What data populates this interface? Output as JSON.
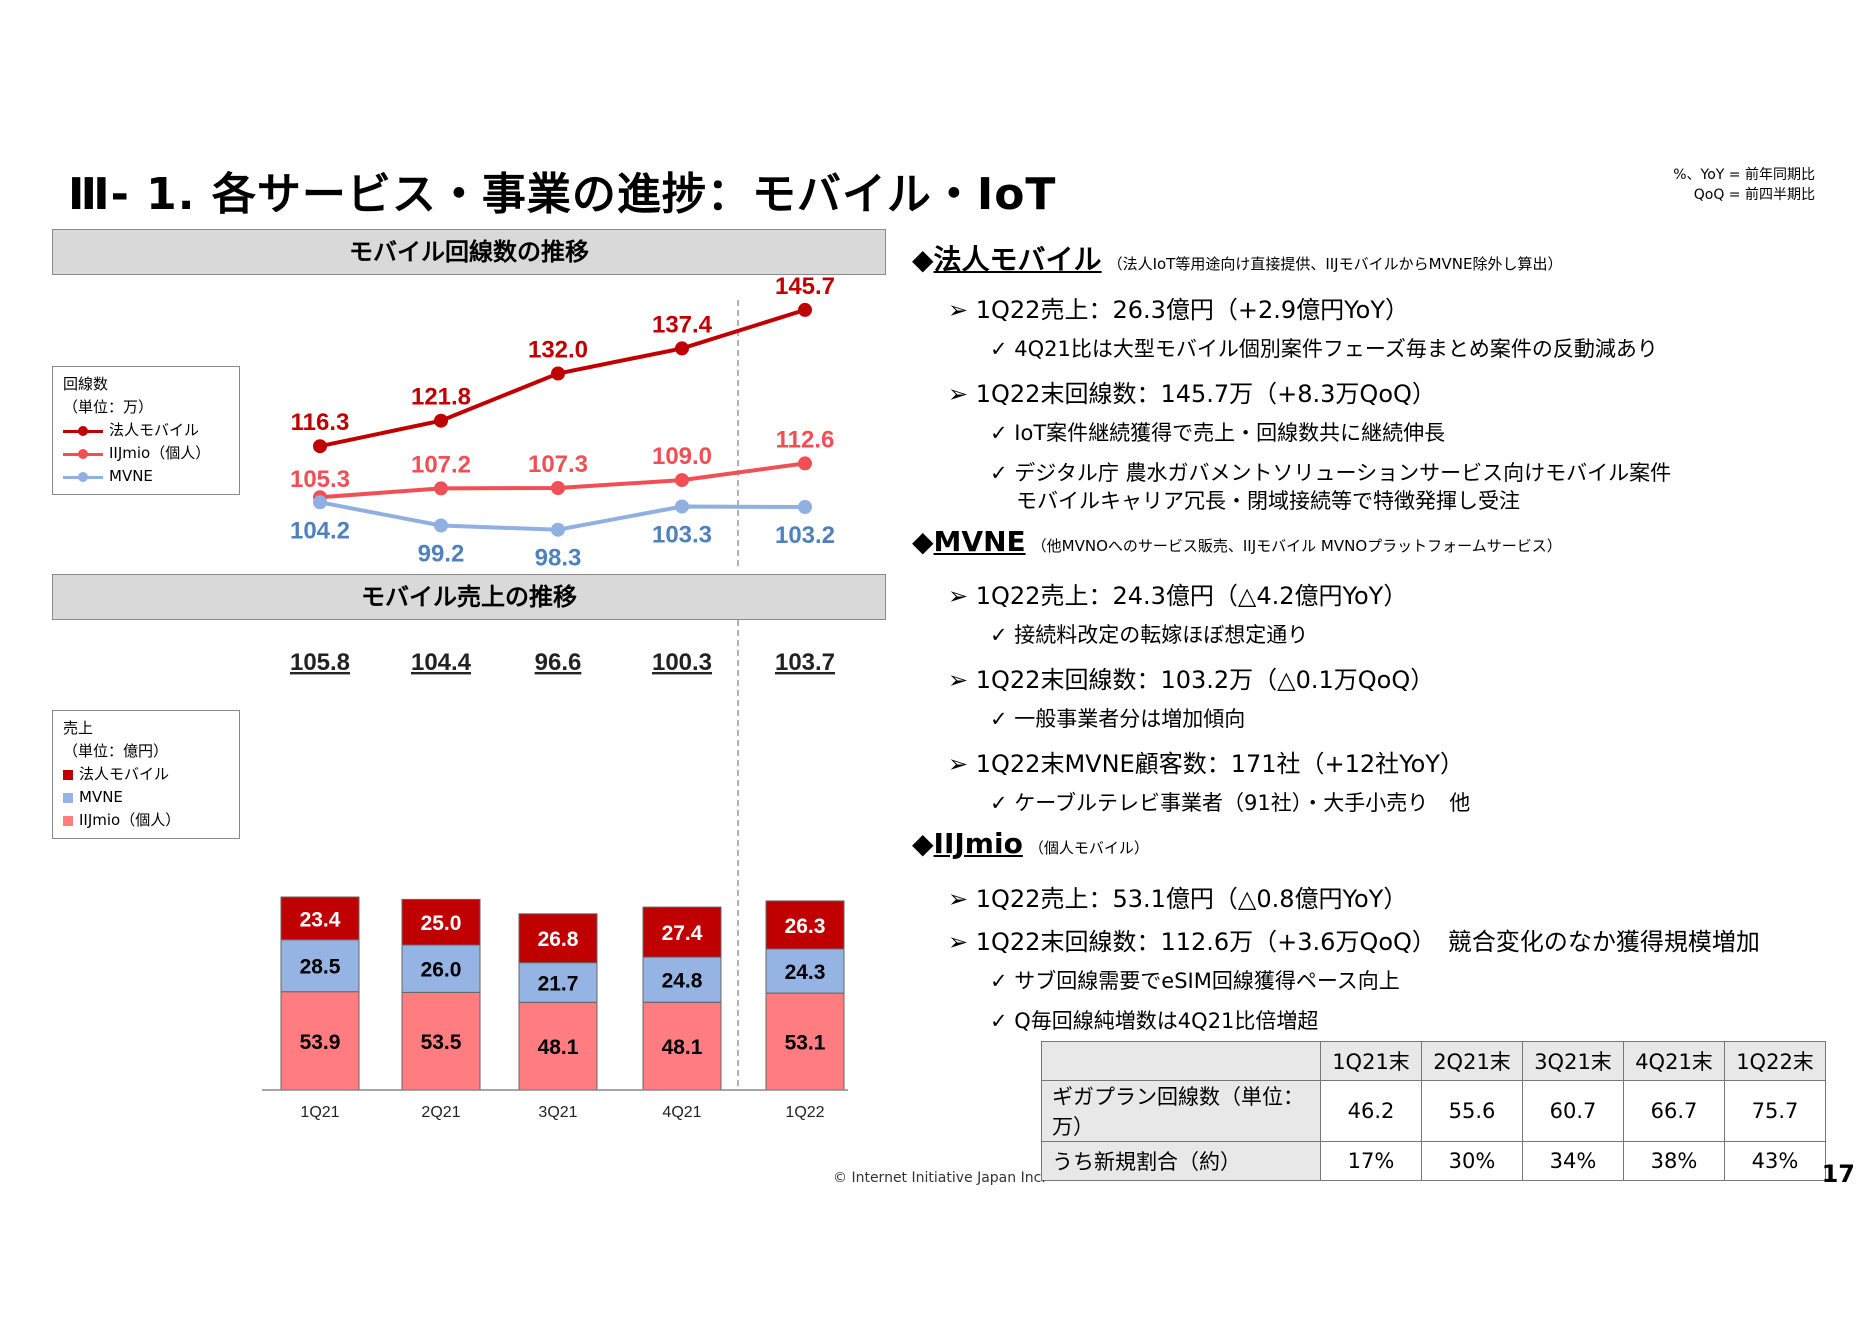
{
  "slide": {
    "title": "Ⅲ- 1.  各サービス・事業の進捗：モバイル・IoT",
    "note_line1": "%、YoY = 前年同期比",
    "note_line2": "QoQ = 前四半期比",
    "footer": "© Internet Initiative Japan Inc.",
    "page_number": "17"
  },
  "line_panel": {
    "header": "モバイル回線数の推移",
    "legend_title": "回線数",
    "legend_unit": "（単位：万）",
    "legend_items": [
      "法人モバイル",
      "IIJmio（個人）",
      "MVNE"
    ]
  },
  "bar_panel": {
    "header": "モバイル売上の推移",
    "legend_title": "売上",
    "legend_unit": "（単位：億円）",
    "legend_items": [
      "法人モバイル",
      "MVNE",
      "IIJmio（個人）"
    ]
  },
  "colors": {
    "corporate": "#c00000",
    "iijmio_line": "#f04f55",
    "mvne_line": "#8fb0e0",
    "mvne_bar": "#95b3e3",
    "iijmio_bar": "#ff7c80",
    "mvne_label": "#4f81bd"
  },
  "chart_data": [
    {
      "type": "line",
      "title": "モバイル回線数の推移",
      "ylabel": "回線数（単位：万）",
      "categories": [
        "1Q21",
        "2Q21",
        "3Q21",
        "4Q21",
        "1Q22"
      ],
      "ylim": [
        95,
        150
      ],
      "series": [
        {
          "name": "法人モバイル",
          "values": [
            116.3,
            121.8,
            132.0,
            137.4,
            145.7
          ],
          "labels": [
            "116.3",
            "121.8",
            "132.0",
            "137.4",
            "145.7"
          ]
        },
        {
          "name": "IIJmio（個人）",
          "values": [
            105.3,
            107.2,
            107.3,
            109.0,
            112.6
          ],
          "labels": [
            "105.3",
            "107.2",
            "107.3",
            "109.0",
            "112.6"
          ]
        },
        {
          "name": "MVNE",
          "values": [
            104.2,
            99.2,
            98.3,
            103.3,
            103.2
          ],
          "labels": [
            "104.2",
            "99.2",
            "98.3",
            "103.3",
            "103.2"
          ]
        }
      ]
    },
    {
      "type": "bar",
      "stacked": true,
      "title": "モバイル売上の推移",
      "ylabel": "売上（単位：億円）",
      "categories": [
        "1Q21",
        "2Q21",
        "3Q21",
        "4Q21",
        "1Q22"
      ],
      "totals": [
        105.8,
        104.4,
        96.6,
        100.3,
        103.7
      ],
      "total_labels": [
        "105.8",
        "104.4",
        "96.6",
        "100.3",
        "103.7"
      ],
      "ylim": [
        0,
        120
      ],
      "series": [
        {
          "name": "IIJmio（個人）",
          "values": [
            53.9,
            53.5,
            48.1,
            48.1,
            53.1
          ],
          "labels": [
            "53.9",
            "53.5",
            "48.1",
            "48.1",
            "53.1"
          ]
        },
        {
          "name": "MVNE",
          "values": [
            28.5,
            26.0,
            21.7,
            24.8,
            24.3
          ],
          "labels": [
            "28.5",
            "26.0",
            "21.7",
            "24.8",
            "24.3"
          ]
        },
        {
          "name": "法人モバイル",
          "values": [
            23.4,
            25.0,
            26.8,
            27.4,
            26.3
          ],
          "labels": [
            "23.4",
            "25.0",
            "26.8",
            "27.4",
            "26.3"
          ]
        }
      ]
    }
  ],
  "right": {
    "corp": {
      "heading": "法人モバイル",
      "note": "（法人IoT等用途向け直接提供、IIJモバイルからMVNE除外し算出）",
      "b1": "1Q22売上：26.3億円（+2.9億円YoY）",
      "b1a": "4Q21比は大型モバイル個別案件フェーズ毎まとめ案件の反動減あり",
      "b2": "1Q22末回線数：145.7万（+8.3万QoQ）",
      "b2a": "IoT案件継続獲得で売上・回線数共に継続伸長",
      "b2b": "デジタル庁 農水ガバメントソリューションサービス向けモバイル案件",
      "b2c": "モバイルキャリア冗長・閉域接続等で特徴発揮し受注"
    },
    "mvne": {
      "heading": "MVNE",
      "note": "（他MVNOへのサービス販売、IIJモバイル MVNOプラットフォームサービス）",
      "b1": "1Q22売上：24.3億円（△4.2億円YoY）",
      "b1a": "接続料改定の転嫁ほぼ想定通り",
      "b2": "1Q22末回線数：103.2万（△0.1万QoQ）",
      "b2a": "一般事業者分は増加傾向",
      "b3": "1Q22末MVNE顧客数：171社（+12社YoY）",
      "b3a": "ケーブルテレビ事業者（91社）・大手小売り　他"
    },
    "iijmio": {
      "heading": "IIJmio",
      "note": "（個人モバイル）",
      "b1": "1Q22売上：53.1億円（△0.8億円YoY）",
      "b2": "1Q22末回線数：112.6万（+3.6万QoQ）　競合変化のなか獲得規模増加",
      "b2a": "サブ回線需要でeSIM回線獲得ペース向上",
      "b2b": "Q毎回線純増数は4Q21比倍増超"
    }
  },
  "gigaplan_table": {
    "headers": [
      "1Q21末",
      "2Q21末",
      "3Q21末",
      "4Q21末",
      "1Q22末"
    ],
    "rows": [
      {
        "label": "ギガプラン回線数（単位：万）",
        "values": [
          "46.2",
          "55.6",
          "60.7",
          "66.7",
          "75.7"
        ]
      },
      {
        "label": "うち新規割合（約）",
        "values": [
          "17%",
          "30%",
          "34%",
          "38%",
          "43%"
        ]
      }
    ]
  }
}
